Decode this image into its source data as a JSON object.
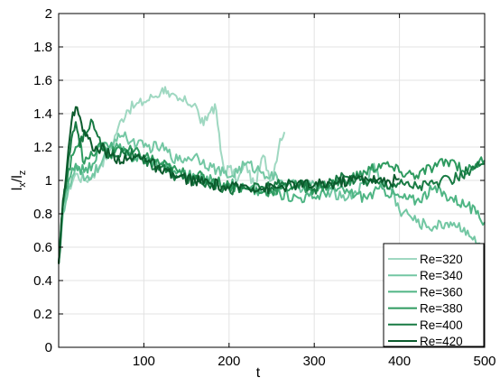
{
  "chart_data": {
    "type": "line",
    "title": "",
    "xlabel": "t",
    "ylabel": "l_x/l_z",
    "ylabel_main": "l",
    "ylabel_sub1": "x",
    "ylabel_mid": "/l",
    "ylabel_sub2": "z",
    "xlim": [
      0,
      500
    ],
    "ylim": [
      0,
      2
    ],
    "xticks": [
      100,
      200,
      300,
      400,
      500
    ],
    "yticks": [
      0,
      0.2,
      0.4,
      0.6,
      0.8,
      1,
      1.2,
      1.4,
      1.6,
      1.8,
      2
    ],
    "grid": true,
    "legend_position": "bottom-right",
    "series": [
      {
        "name": "Re=320",
        "color": "#9fd8c1",
        "x": [
          0,
          5,
          10,
          20,
          30,
          40,
          50,
          60,
          70,
          80,
          90,
          100,
          110,
          120,
          125,
          130,
          140,
          150,
          160,
          165,
          170,
          180,
          185,
          190,
          195,
          200,
          210,
          220,
          230,
          240,
          250,
          260,
          265
        ],
        "y": [
          0.5,
          0.82,
          0.93,
          1.04,
          1.0,
          1.03,
          1.1,
          1.18,
          1.32,
          1.42,
          1.45,
          1.47,
          1.5,
          1.53,
          1.56,
          1.5,
          1.48,
          1.47,
          1.46,
          1.38,
          1.33,
          1.44,
          1.42,
          1.18,
          1.05,
          1.08,
          1.0,
          1.1,
          0.95,
          1.15,
          1.0,
          1.25,
          1.29
        ]
      },
      {
        "name": "Re=340",
        "color": "#73c7a3",
        "x": [
          0,
          5,
          10,
          20,
          30,
          40,
          50,
          60,
          70,
          80,
          100,
          120,
          140,
          160,
          180,
          200,
          220,
          240,
          260,
          280,
          300,
          320,
          340,
          360,
          370,
          380,
          390,
          400,
          410,
          420,
          440,
          460,
          480,
          490,
          500
        ],
        "y": [
          0.5,
          0.8,
          0.9,
          1.08,
          1.0,
          1.04,
          1.1,
          1.2,
          1.28,
          1.25,
          1.2,
          1.2,
          1.12,
          1.15,
          1.08,
          1.02,
          1.1,
          1.05,
          1.0,
          0.96,
          0.98,
          0.93,
          0.9,
          0.98,
          1.1,
          0.98,
          0.95,
          0.82,
          0.8,
          0.75,
          0.72,
          0.75,
          0.7,
          0.62,
          0.6
        ]
      },
      {
        "name": "Re=360",
        "color": "#4fb584",
        "x": [
          0,
          5,
          10,
          20,
          30,
          40,
          50,
          60,
          70,
          80,
          100,
          120,
          140,
          160,
          180,
          200,
          220,
          240,
          260,
          280,
          300,
          320,
          340,
          360,
          380,
          400,
          420,
          440,
          460,
          480,
          490,
          500
        ],
        "y": [
          0.5,
          0.85,
          0.95,
          1.1,
          1.05,
          1.1,
          1.22,
          1.2,
          1.2,
          1.15,
          1.13,
          1.1,
          1.05,
          1.02,
          1.0,
          0.98,
          0.95,
          0.93,
          0.92,
          0.9,
          0.9,
          0.95,
          0.93,
          0.9,
          0.95,
          0.9,
          0.88,
          0.95,
          0.9,
          0.85,
          0.8,
          0.75
        ]
      },
      {
        "name": "Re=380",
        "color": "#2e9a5f",
        "x": [
          0,
          5,
          10,
          15,
          20,
          25,
          30,
          40,
          50,
          60,
          70,
          80,
          100,
          120,
          140,
          160,
          180,
          200,
          220,
          240,
          260,
          280,
          300,
          320,
          340,
          360,
          380,
          400,
          420,
          440,
          460,
          480,
          490,
          500
        ],
        "y": [
          0.5,
          0.85,
          1.0,
          1.15,
          1.2,
          1.25,
          1.1,
          1.15,
          1.22,
          1.15,
          1.2,
          1.18,
          1.15,
          1.1,
          1.05,
          1.03,
          1.0,
          0.97,
          0.95,
          0.93,
          0.95,
          0.97,
          0.95,
          0.98,
          1.0,
          1.05,
          1.1,
          1.05,
          1.03,
          1.08,
          1.12,
          1.05,
          1.1,
          1.12
        ]
      },
      {
        "name": "Re=400",
        "color": "#187a43",
        "x": [
          0,
          5,
          10,
          15,
          20,
          25,
          30,
          40,
          50,
          60,
          80,
          100,
          120,
          140,
          160,
          180,
          200,
          220,
          240,
          260,
          280,
          300,
          320,
          340,
          360,
          380,
          400,
          420,
          440,
          460,
          480,
          490,
          500
        ],
        "y": [
          0.5,
          0.85,
          1.05,
          1.25,
          1.35,
          1.2,
          1.3,
          1.35,
          1.2,
          1.15,
          1.18,
          1.1,
          1.08,
          1.02,
          1.0,
          0.98,
          0.95,
          0.95,
          0.96,
          0.97,
          0.98,
          0.95,
          1.0,
          1.02,
          1.0,
          0.98,
          0.98,
          0.97,
          0.98,
          1.0,
          1.05,
          1.08,
          1.1
        ]
      },
      {
        "name": "Re=420",
        "color": "#0b5a2c",
        "x": [
          0,
          5,
          10,
          15,
          20,
          25,
          30,
          35,
          40,
          50,
          60,
          80,
          100,
          120,
          140,
          160,
          180,
          200,
          220,
          240,
          260,
          280,
          300,
          320,
          340,
          360,
          380,
          400
        ],
        "y": [
          0.5,
          0.88,
          1.1,
          1.35,
          1.44,
          1.38,
          1.3,
          1.25,
          1.18,
          1.2,
          1.15,
          1.12,
          1.15,
          1.05,
          1.02,
          1.0,
          0.98,
          0.95,
          0.97,
          0.95,
          0.96,
          0.98,
          0.97,
          0.98,
          1.0,
          1.02,
          0.99,
          1.01
        ]
      }
    ]
  }
}
